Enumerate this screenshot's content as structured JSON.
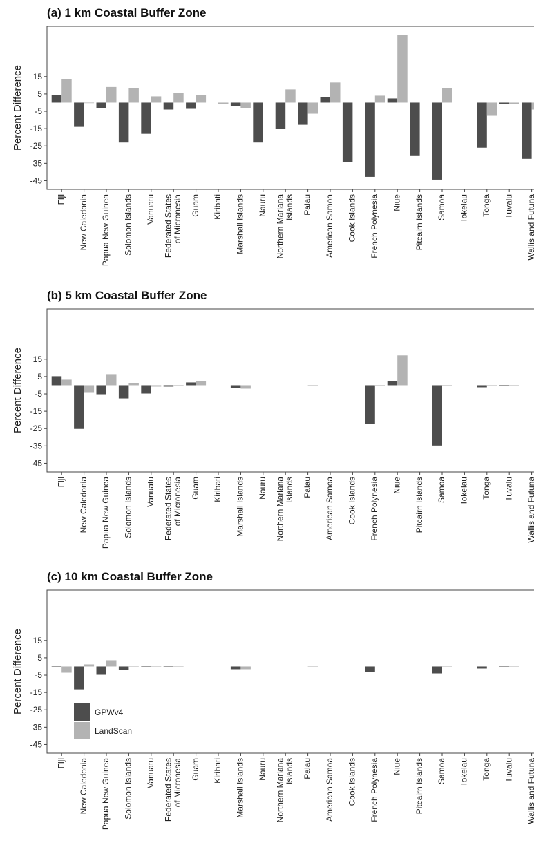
{
  "chart_data": [
    {
      "type": "bar",
      "title": "(a) 1 km Coastal Buffer Zone",
      "y_label": "Percent Difference",
      "categories": [
        "Fiji",
        "New Caledonia",
        "Papua New Guinea",
        "Solomon Islands",
        "Vanuatu",
        "Federated States\nof Micronesia",
        "Guam",
        "Kiribati",
        "Marshall Islands",
        "Nauru",
        "Northern Mariana\nIslands",
        "Palau",
        "American Samoa",
        "Cook Islands",
        "French Polynesia",
        "Niue",
        "Pitcairn Islands",
        "Samoa",
        "Tokelau",
        "Tonga",
        "Tuvalu",
        "Wallis and Futuna"
      ],
      "series": [
        {
          "color": "#4d4d4d",
          "values": [
            4.4,
            -14,
            -3,
            -23,
            -18,
            -4,
            -3.6,
            0,
            -2,
            -23,
            -15.2,
            -12.8,
            3.2,
            -34.4,
            -42.8,
            2.4,
            -30.8,
            -44.4,
            0,
            -26,
            -0.6,
            -32.4
          ]
        },
        {
          "color": "#b3b3b3",
          "values": [
            13.6,
            -0.3,
            9,
            8.4,
            3.6,
            5.6,
            4.4,
            -0.6,
            -3.2,
            0,
            7.6,
            -6.4,
            11.6,
            0,
            4,
            39.2,
            0,
            8.4,
            0,
            -7.6,
            -0.8,
            -4
          ]
        }
      ],
      "ylim": [
        -50,
        44
      ],
      "yticks": [
        15,
        5,
        -5,
        -15,
        -25,
        -35,
        -45
      ]
    },
    {
      "type": "bar",
      "title": "(b) 5 km Coastal Buffer Zone",
      "y_label": "Percent Difference",
      "categories": [
        "Fiji",
        "New Caledonia",
        "Papua New Guinea",
        "Solomon Islands",
        "Vanuatu",
        "Federated States\nof Micronesia",
        "Guam",
        "Kiribati",
        "Marshall Islands",
        "Nauru",
        "Northern Mariana\nIslands",
        "Palau",
        "American Samoa",
        "Cook Islands",
        "French Polynesia",
        "Niue",
        "Pitcairn Islands",
        "Samoa",
        "Tokelau",
        "Tonga",
        "Tuvalu",
        "Wallis and Futuna"
      ],
      "series": [
        {
          "color": "#4d4d4d",
          "values": [
            5.2,
            -25.2,
            -5.2,
            -7.6,
            -4.8,
            -0.8,
            1.6,
            0,
            -1.6,
            0,
            0,
            0,
            0,
            0,
            -22.4,
            2.4,
            0,
            -34.8,
            0,
            -1.2,
            -0.4,
            0
          ]
        },
        {
          "color": "#b3b3b3",
          "values": [
            3.2,
            -4.4,
            6.4,
            1.2,
            -0.8,
            -0.4,
            2.4,
            0,
            -2,
            0,
            0,
            -0.4,
            0,
            0,
            -0.6,
            17.2,
            0,
            -0.4,
            0,
            -0.2,
            -0.4,
            0
          ]
        }
      ],
      "ylim": [
        -50,
        44
      ],
      "yticks": [
        15,
        5,
        -5,
        -15,
        -25,
        -35,
        -45
      ]
    },
    {
      "type": "bar",
      "title": "(c) 10 km Coastal Buffer Zone",
      "y_label": "Percent Difference",
      "categories": [
        "Fiji",
        "New Caledonia",
        "Papua New Guinea",
        "Solomon Islands",
        "Vanuatu",
        "Federated States\nof Micronesia",
        "Guam",
        "Kiribati",
        "Marshall Islands",
        "Nauru",
        "Northern Mariana\nIslands",
        "Palau",
        "American Samoa",
        "Cook Islands",
        "French Polynesia",
        "Niue",
        "Pitcairn Islands",
        "Samoa",
        "Tokelau",
        "Tonga",
        "Tuvalu",
        "Wallis and Futuna"
      ],
      "series": [
        {
          "name": "GPWv4",
          "color": "#4d4d4d",
          "values": [
            -0.4,
            -13.2,
            -4.8,
            -2,
            -0.4,
            -0.2,
            0,
            0,
            -1.6,
            0,
            0,
            0,
            0,
            0,
            -3.2,
            0,
            0,
            -4,
            0,
            -1.2,
            -0.4,
            0
          ]
        },
        {
          "name": "LandScan",
          "color": "#b3b3b3",
          "values": [
            -3.6,
            1.2,
            3.6,
            -0.4,
            -0.4,
            -0.4,
            0,
            0,
            -1.6,
            0,
            0,
            -0.4,
            0,
            0,
            0,
            0,
            0,
            -0.2,
            0,
            0,
            -0.4,
            0
          ]
        }
      ],
      "ylim": [
        -50,
        44
      ],
      "yticks": [
        15,
        5,
        -5,
        -15,
        -25,
        -35,
        -45
      ],
      "legend": "lower-left"
    }
  ]
}
